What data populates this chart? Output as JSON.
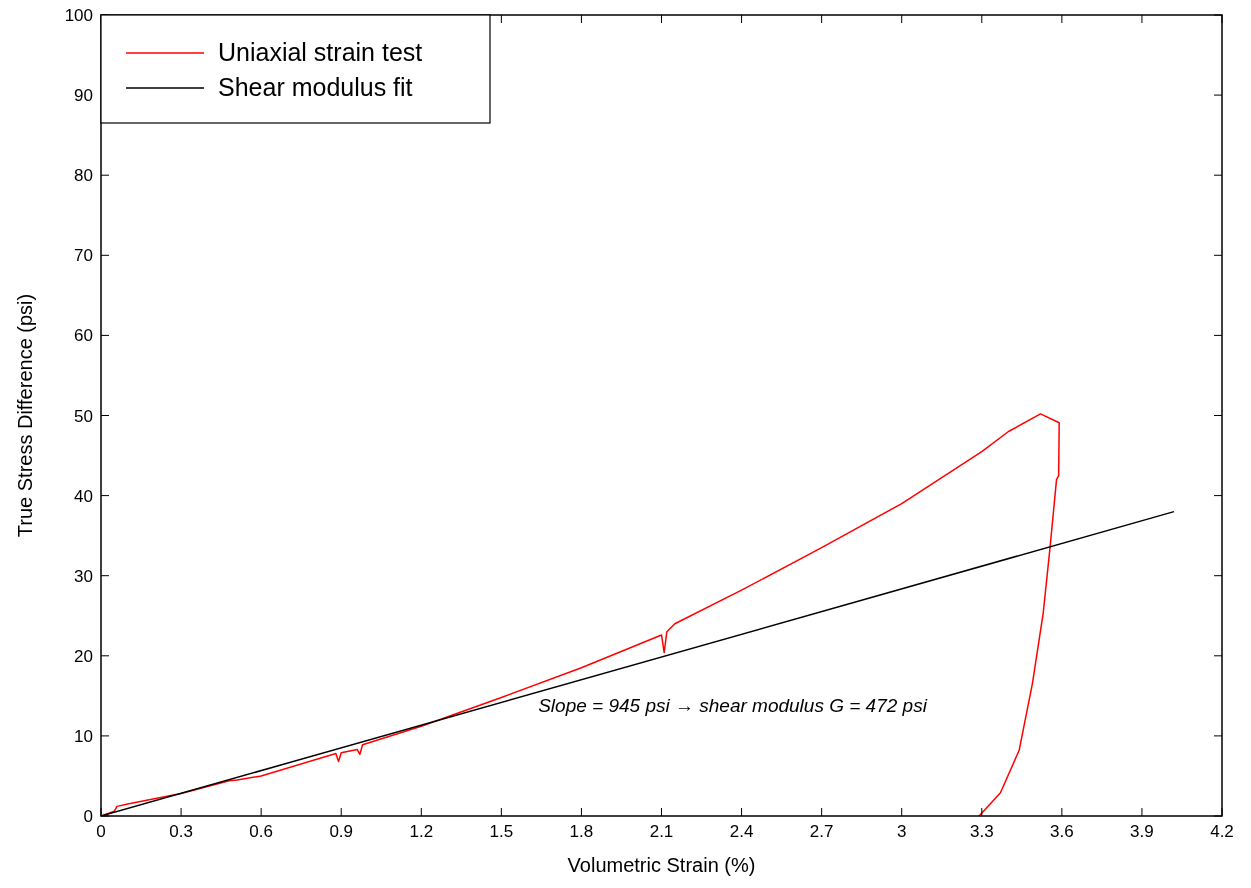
{
  "chart_data": {
    "type": "line",
    "xlabel": "Volumetric Strain (%)",
    "ylabel": "True Stress Difference (psi)",
    "xlim": [
      0,
      4.2
    ],
    "xticks": [
      0,
      0.3,
      0.6,
      0.9,
      1.2,
      1.5,
      1.8,
      2.1,
      2.4,
      2.7,
      3,
      3.3,
      3.6,
      3.9,
      4.2
    ],
    "ylim": [
      0,
      100
    ],
    "yticks": [
      0,
      10,
      20,
      30,
      40,
      50,
      60,
      70,
      80,
      90,
      100
    ],
    "legend": "top left",
    "grid": false,
    "marker": "none",
    "line_style": "solid",
    "series": [
      {
        "name": "Uniaxial strain test",
        "color": "#ff0000",
        "x": [
          0,
          0.05,
          0.06,
          0.1,
          0.3,
          0.48,
          0.51,
          0.6,
          0.88,
          0.89,
          0.9,
          0.96,
          0.97,
          0.98,
          1.2,
          1.5,
          1.8,
          2.1,
          2.11,
          2.12,
          2.15,
          2.4,
          2.7,
          3.0,
          3.3,
          3.4,
          3.52,
          3.59,
          3.588,
          3.58,
          3.556,
          3.53,
          3.49,
          3.44,
          3.37,
          3.29
        ],
        "values": [
          0,
          0.6,
          1.2,
          1.5,
          2.8,
          4.4,
          4.5,
          5.0,
          7.8,
          6.8,
          7.9,
          8.3,
          7.7,
          8.9,
          11.2,
          14.8,
          18.5,
          22.6,
          20.4,
          23.0,
          24.0,
          28.2,
          33.5,
          39.0,
          45.5,
          48.0,
          50.2,
          49.1,
          42.5,
          42.0,
          33.6,
          25.3,
          16.6,
          8.2,
          2.9,
          0
        ]
      },
      {
        "name": "Shear modulus fit",
        "color": "#000000",
        "x": [
          0,
          4.02
        ],
        "values": [
          0,
          38
        ]
      }
    ],
    "annotations": [
      "Slope = 945 psi → shear modulus G = 472 psi"
    ]
  }
}
